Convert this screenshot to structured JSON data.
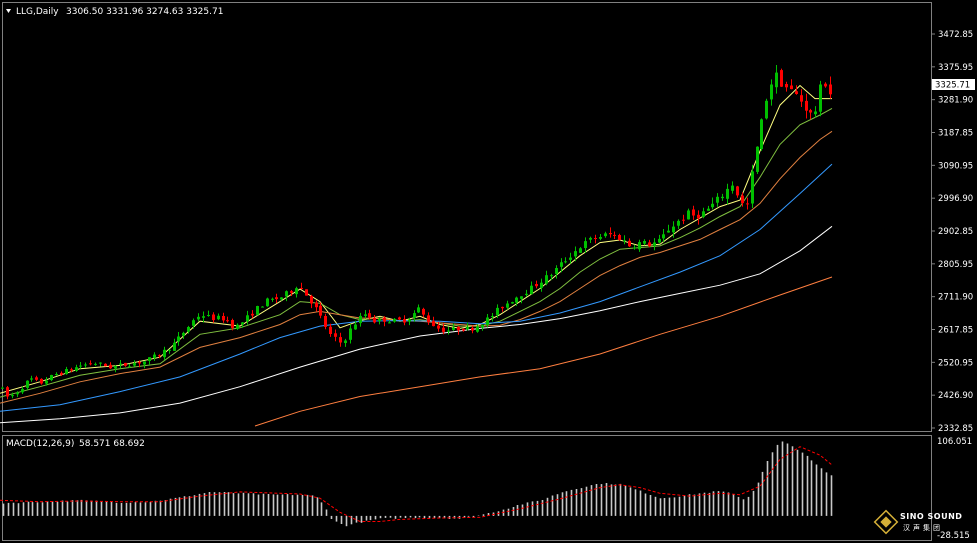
{
  "header": {
    "symbol_label": "LLG,Daily",
    "ohlc": "3306.50 3331.96 3274.63 3325.71"
  },
  "macd_header": {
    "label": "MACD(12,26,9)",
    "values": "58.571 68.692"
  },
  "price_axis": {
    "ticks": [
      "3472.85",
      "3375.95",
      "3281.90",
      "3187.85",
      "3090.95",
      "2996.90",
      "2902.85",
      "2805.95",
      "2711.90",
      "2617.85",
      "2520.95",
      "2426.90",
      "2332.85"
    ],
    "last_price": "3325.71"
  },
  "macd_axis": {
    "ticks": [
      "106.051",
      "-28.515"
    ]
  },
  "logo": {
    "line1": "SINO SOUND",
    "line2": "汉声集团"
  },
  "colors": {
    "background": "#000000",
    "bull_candle": "#00c000",
    "bear_candle": "#ff0000",
    "ma_fast": "#ffff80",
    "ma_mid": "#80c040",
    "ma_slow": "#e08040",
    "ma_60": "#3399ff",
    "ma_120": "#ffffff",
    "ma_250": "#ff7f40",
    "macd_hist": "#c8c8c8",
    "macd_signal": "#ff0000"
  },
  "chart_data": {
    "type": "candlestick",
    "symbol": "LLG",
    "timeframe": "Daily",
    "ylim": [
      2320,
      3560
    ],
    "price_path": [
      [
        0,
        2440
      ],
      [
        8,
        2405
      ],
      [
        18,
        2428
      ],
      [
        30,
        2465
      ],
      [
        40,
        2450
      ],
      [
        55,
        2478
      ],
      [
        70,
        2492
      ],
      [
        80,
        2505
      ],
      [
        95,
        2512
      ],
      [
        110,
        2500
      ],
      [
        130,
        2510
      ],
      [
        145,
        2518
      ],
      [
        160,
        2540
      ],
      [
        175,
        2575
      ],
      [
        185,
        2612
      ],
      [
        193,
        2642
      ],
      [
        200,
        2662
      ],
      [
        210,
        2650
      ],
      [
        225,
        2648
      ],
      [
        235,
        2620
      ],
      [
        245,
        2645
      ],
      [
        255,
        2675
      ],
      [
        265,
        2700
      ],
      [
        280,
        2712
      ],
      [
        290,
        2730
      ],
      [
        297,
        2752
      ],
      [
        305,
        2725
      ],
      [
        313,
        2692
      ],
      [
        320,
        2655
      ],
      [
        330,
        2598
      ],
      [
        340,
        2575
      ],
      [
        345,
        2588
      ],
      [
        352,
        2625
      ],
      [
        360,
        2652
      ],
      [
        366,
        2665
      ],
      [
        375,
        2640
      ],
      [
        385,
        2645
      ],
      [
        395,
        2640
      ],
      [
        405,
        2645
      ],
      [
        412,
        2658
      ],
      [
        418,
        2680
      ],
      [
        425,
        2652
      ],
      [
        432,
        2632
      ],
      [
        440,
        2615
      ],
      [
        450,
        2612
      ],
      [
        460,
        2620
      ],
      [
        470,
        2615
      ],
      [
        480,
        2632
      ],
      [
        490,
        2652
      ],
      [
        500,
        2682
      ],
      [
        510,
        2702
      ],
      [
        520,
        2722
      ],
      [
        530,
        2738
      ],
      [
        540,
        2762
      ],
      [
        550,
        2782
      ],
      [
        560,
        2812
      ],
      [
        570,
        2840
      ],
      [
        580,
        2868
      ],
      [
        590,
        2888
      ],
      [
        600,
        2900
      ],
      [
        610,
        2905
      ],
      [
        620,
        2895
      ],
      [
        630,
        2870
      ],
      [
        640,
        2880
      ],
      [
        650,
        2875
      ],
      [
        660,
        2885
      ],
      [
        668,
        2920
      ],
      [
        678,
        2945
      ],
      [
        688,
        2968
      ],
      [
        695,
        2960
      ],
      [
        705,
        2975
      ],
      [
        715,
        3002
      ],
      [
        725,
        3035
      ],
      [
        733,
        3062
      ],
      [
        740,
        3005
      ],
      [
        746,
        2982
      ],
      [
        752,
        3095
      ],
      [
        760,
        3225
      ],
      [
        768,
        3345
      ],
      [
        775,
        3395
      ],
      [
        782,
        3365
      ],
      [
        790,
        3345
      ],
      [
        798,
        3325
      ],
      [
        805,
        3295
      ],
      [
        812,
        3265
      ],
      [
        818,
        3300
      ],
      [
        822,
        3385
      ],
      [
        826,
        3365
      ],
      [
        832,
        3325
      ]
    ],
    "moving_averages": [
      {
        "color": "#ffff80",
        "points": [
          [
            0,
            2420
          ],
          [
            40,
            2455
          ],
          [
            80,
            2495
          ],
          [
            120,
            2505
          ],
          [
            160,
            2530
          ],
          [
            200,
            2640
          ],
          [
            240,
            2625
          ],
          [
            280,
            2700
          ],
          [
            300,
            2738
          ],
          [
            320,
            2700
          ],
          [
            340,
            2620
          ],
          [
            360,
            2642
          ],
          [
            380,
            2655
          ],
          [
            400,
            2640
          ],
          [
            420,
            2655
          ],
          [
            440,
            2630
          ],
          [
            460,
            2618
          ],
          [
            480,
            2630
          ],
          [
            500,
            2660
          ],
          [
            520,
            2700
          ],
          [
            540,
            2740
          ],
          [
            560,
            2790
          ],
          [
            580,
            2840
          ],
          [
            600,
            2880
          ],
          [
            620,
            2888
          ],
          [
            640,
            2870
          ],
          [
            660,
            2875
          ],
          [
            680,
            2920
          ],
          [
            700,
            2955
          ],
          [
            720,
            2990
          ],
          [
            740,
            3010
          ],
          [
            760,
            3160
          ],
          [
            780,
            3300
          ],
          [
            800,
            3360
          ],
          [
            815,
            3320
          ],
          [
            832,
            3320
          ]
        ]
      },
      {
        "color": "#80c040",
        "points": [
          [
            0,
            2408
          ],
          [
            40,
            2440
          ],
          [
            80,
            2475
          ],
          [
            120,
            2495
          ],
          [
            160,
            2510
          ],
          [
            200,
            2600
          ],
          [
            240,
            2620
          ],
          [
            280,
            2660
          ],
          [
            300,
            2700
          ],
          [
            320,
            2695
          ],
          [
            340,
            2660
          ],
          [
            360,
            2645
          ],
          [
            380,
            2650
          ],
          [
            400,
            2640
          ],
          [
            420,
            2645
          ],
          [
            440,
            2635
          ],
          [
            460,
            2625
          ],
          [
            480,
            2625
          ],
          [
            500,
            2640
          ],
          [
            520,
            2670
          ],
          [
            540,
            2700
          ],
          [
            560,
            2740
          ],
          [
            580,
            2790
          ],
          [
            600,
            2830
          ],
          [
            620,
            2860
          ],
          [
            640,
            2865
          ],
          [
            660,
            2870
          ],
          [
            680,
            2895
          ],
          [
            700,
            2925
          ],
          [
            720,
            2960
          ],
          [
            740,
            2990
          ],
          [
            760,
            3080
          ],
          [
            780,
            3180
          ],
          [
            800,
            3240
          ],
          [
            820,
            3270
          ],
          [
            832,
            3290
          ]
        ]
      },
      {
        "color": "#e08040",
        "points": [
          [
            0,
            2390
          ],
          [
            40,
            2420
          ],
          [
            80,
            2455
          ],
          [
            120,
            2480
          ],
          [
            160,
            2500
          ],
          [
            200,
            2560
          ],
          [
            240,
            2590
          ],
          [
            280,
            2630
          ],
          [
            300,
            2660
          ],
          [
            320,
            2670
          ],
          [
            340,
            2660
          ],
          [
            360,
            2650
          ],
          [
            380,
            2648
          ],
          [
            400,
            2642
          ],
          [
            420,
            2640
          ],
          [
            440,
            2635
          ],
          [
            460,
            2630
          ],
          [
            480,
            2625
          ],
          [
            500,
            2628
          ],
          [
            520,
            2645
          ],
          [
            540,
            2670
          ],
          [
            560,
            2700
          ],
          [
            580,
            2740
          ],
          [
            600,
            2780
          ],
          [
            620,
            2810
          ],
          [
            640,
            2835
          ],
          [
            660,
            2850
          ],
          [
            680,
            2870
          ],
          [
            700,
            2890
          ],
          [
            720,
            2920
          ],
          [
            740,
            2950
          ],
          [
            760,
            3000
          ],
          [
            780,
            3075
          ],
          [
            800,
            3140
          ],
          [
            820,
            3195
          ],
          [
            832,
            3220
          ]
        ]
      },
      {
        "color": "#3399ff",
        "points": [
          [
            0,
            2365
          ],
          [
            60,
            2385
          ],
          [
            120,
            2425
          ],
          [
            180,
            2470
          ],
          [
            240,
            2540
          ],
          [
            280,
            2590
          ],
          [
            320,
            2625
          ],
          [
            360,
            2640
          ],
          [
            400,
            2642
          ],
          [
            440,
            2640
          ],
          [
            480,
            2632
          ],
          [
            520,
            2640
          ],
          [
            560,
            2665
          ],
          [
            600,
            2700
          ],
          [
            640,
            2745
          ],
          [
            680,
            2790
          ],
          [
            720,
            2840
          ],
          [
            760,
            2920
          ],
          [
            800,
            3030
          ],
          [
            832,
            3120
          ]
        ]
      },
      {
        "color": "#ffffff",
        "points": [
          [
            0,
            2330
          ],
          [
            60,
            2342
          ],
          [
            120,
            2360
          ],
          [
            180,
            2390
          ],
          [
            240,
            2440
          ],
          [
            300,
            2500
          ],
          [
            360,
            2555
          ],
          [
            420,
            2595
          ],
          [
            480,
            2618
          ],
          [
            520,
            2630
          ],
          [
            560,
            2648
          ],
          [
            600,
            2672
          ],
          [
            640,
            2700
          ],
          [
            680,
            2725
          ],
          [
            720,
            2750
          ],
          [
            760,
            2785
          ],
          [
            800,
            2855
          ],
          [
            832,
            2930
          ]
        ]
      },
      {
        "color": "#ff7f40",
        "points": [
          [
            255,
            2320
          ],
          [
            300,
            2365
          ],
          [
            360,
            2410
          ],
          [
            420,
            2440
          ],
          [
            480,
            2470
          ],
          [
            540,
            2495
          ],
          [
            600,
            2540
          ],
          [
            660,
            2600
          ],
          [
            720,
            2655
          ],
          [
            780,
            2720
          ],
          [
            832,
            2775
          ]
        ]
      }
    ],
    "macd": {
      "ylim": [
        -28.515,
        106.051
      ],
      "histogram_path": [
        [
          0,
          18
        ],
        [
          40,
          20
        ],
        [
          80,
          22
        ],
        [
          120,
          19
        ],
        [
          150,
          20
        ],
        [
          180,
          26
        ],
        [
          210,
          34
        ],
        [
          240,
          32
        ],
        [
          270,
          30
        ],
        [
          300,
          30
        ],
        [
          315,
          28
        ],
        [
          325,
          14
        ],
        [
          332,
          -6
        ],
        [
          345,
          -14
        ],
        [
          360,
          -9
        ],
        [
          380,
          -4
        ],
        [
          400,
          -3
        ],
        [
          420,
          -2
        ],
        [
          440,
          -3
        ],
        [
          460,
          -4
        ],
        [
          480,
          1
        ],
        [
          500,
          8
        ],
        [
          520,
          16
        ],
        [
          540,
          22
        ],
        [
          560,
          33
        ],
        [
          580,
          40
        ],
        [
          600,
          46
        ],
        [
          620,
          45
        ],
        [
          640,
          35
        ],
        [
          660,
          25
        ],
        [
          680,
          28
        ],
        [
          700,
          32
        ],
        [
          720,
          35
        ],
        [
          735,
          30
        ],
        [
          745,
          22
        ],
        [
          755,
          40
        ],
        [
          770,
          85
        ],
        [
          780,
          106
        ],
        [
          790,
          100
        ],
        [
          800,
          92
        ],
        [
          810,
          80
        ],
        [
          820,
          68
        ],
        [
          832,
          56
        ]
      ],
      "signal_path": [
        [
          0,
          22
        ],
        [
          40,
          20
        ],
        [
          80,
          21
        ],
        [
          120,
          20
        ],
        [
          160,
          20
        ],
        [
          200,
          28
        ],
        [
          240,
          34
        ],
        [
          280,
          32
        ],
        [
          300,
          31
        ],
        [
          320,
          25
        ],
        [
          340,
          5
        ],
        [
          360,
          -8
        ],
        [
          380,
          -8
        ],
        [
          400,
          -5
        ],
        [
          440,
          -3
        ],
        [
          480,
          -2
        ],
        [
          520,
          10
        ],
        [
          560,
          24
        ],
        [
          600,
          40
        ],
        [
          620,
          44
        ],
        [
          640,
          40
        ],
        [
          660,
          32
        ],
        [
          690,
          28
        ],
        [
          720,
          32
        ],
        [
          740,
          30
        ],
        [
          760,
          42
        ],
        [
          780,
          80
        ],
        [
          800,
          98
        ],
        [
          820,
          86
        ],
        [
          832,
          72
        ]
      ]
    }
  }
}
